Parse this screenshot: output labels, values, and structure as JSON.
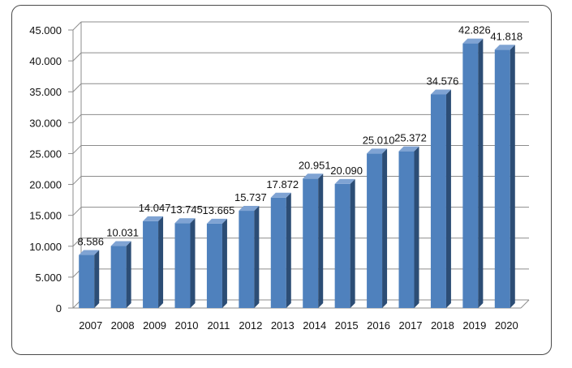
{
  "chart_data": {
    "type": "bar",
    "categories": [
      "2007",
      "2008",
      "2009",
      "2010",
      "2011",
      "2012",
      "2013",
      "2014",
      "2015",
      "2016",
      "2017",
      "2018",
      "2019",
      "2020"
    ],
    "values": [
      8586,
      10031,
      14047,
      13745,
      13665,
      15737,
      17872,
      20951,
      20090,
      25010,
      25372,
      34576,
      42826,
      41818
    ],
    "data_labels": [
      "8.586",
      "10.031",
      "14.047",
      "13.745",
      "13.665",
      "15.737",
      "17.872",
      "20.951",
      "20.090",
      "25.010",
      "25.372",
      "34.576",
      "42.826",
      "41.818"
    ],
    "y_ticks": [
      0,
      5000,
      10000,
      15000,
      20000,
      25000,
      30000,
      35000,
      40000,
      45000
    ],
    "y_tick_labels": [
      "0",
      "5.000",
      "10.000",
      "15.000",
      "20.000",
      "25.000",
      "30.000",
      "35.000",
      "40.000",
      "45.000"
    ],
    "ylim": [
      0,
      45000
    ],
    "title": "",
    "xlabel": "",
    "ylabel": "",
    "grid": true,
    "legend": "none",
    "style_3d": true,
    "colors": {
      "bar_front": "#4f81bd",
      "bar_side": "#2c4d75",
      "bar_top": "#7fa3d3",
      "grid": "#8c8c8c",
      "frame": "#4a4a4a"
    }
  }
}
